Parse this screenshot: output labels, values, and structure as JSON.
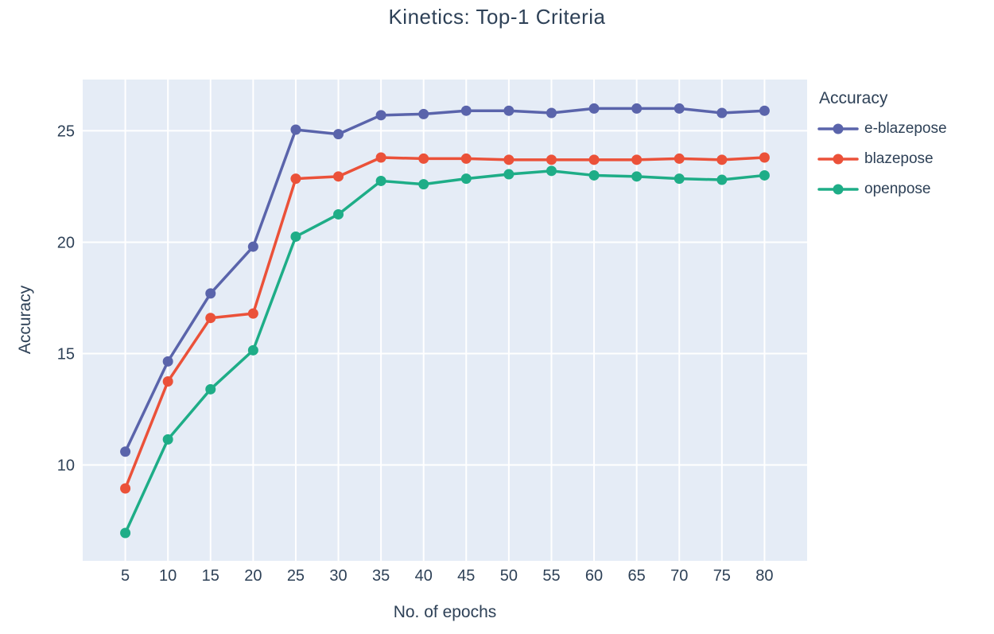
{
  "chart_data": {
    "type": "line",
    "title": "Kinetics: Top-1 Criteria",
    "xlabel": "No. of epochs",
    "ylabel": "Accuracy",
    "legend_title": "Accuracy",
    "legend_position": "right",
    "grid": true,
    "plot_bg": "#e5ecf6",
    "grid_color": "#ffffff",
    "text_color": "#2e4157",
    "xlim": [
      0,
      85
    ],
    "ylim": [
      5.7,
      27.3
    ],
    "xticks": [
      5,
      10,
      15,
      20,
      25,
      30,
      35,
      40,
      45,
      50,
      55,
      60,
      65,
      70,
      75,
      80
    ],
    "yticks": [
      10,
      15,
      20,
      25
    ],
    "x": [
      5,
      10,
      15,
      20,
      25,
      30,
      35,
      40,
      45,
      50,
      55,
      60,
      65,
      70,
      75,
      80
    ],
    "series": [
      {
        "name": "e-blazepose",
        "color": "#5a64ab",
        "values": [
          10.6,
          14.65,
          17.7,
          19.8,
          25.05,
          24.85,
          25.7,
          25.75,
          25.9,
          25.9,
          25.8,
          26.0,
          26.0,
          26.0,
          25.8,
          25.9
        ]
      },
      {
        "name": "blazepose",
        "color": "#eb5139",
        "values": [
          8.95,
          13.75,
          16.6,
          16.8,
          22.85,
          22.95,
          23.8,
          23.75,
          23.75,
          23.7,
          23.7,
          23.7,
          23.7,
          23.75,
          23.7,
          23.8
        ]
      },
      {
        "name": "openpose",
        "color": "#1ead87",
        "values": [
          6.95,
          11.15,
          13.4,
          15.15,
          20.25,
          21.25,
          22.75,
          22.6,
          22.85,
          23.05,
          23.2,
          23.0,
          22.95,
          22.85,
          22.8,
          23.0
        ]
      }
    ]
  }
}
